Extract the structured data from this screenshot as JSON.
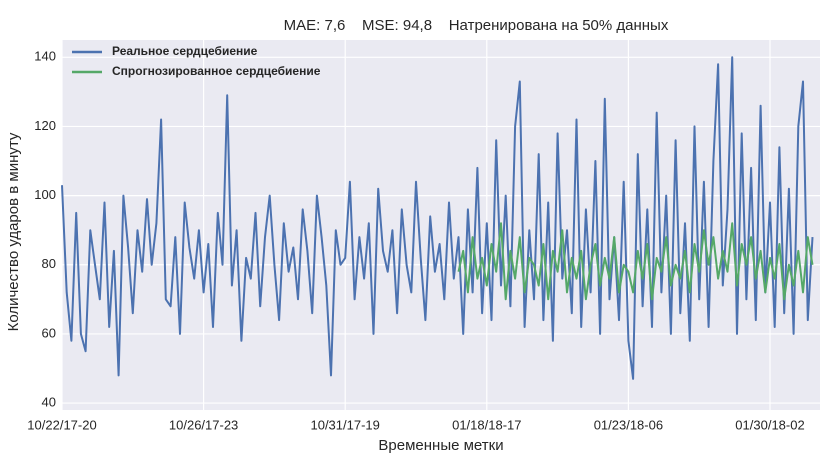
{
  "chart_data": {
    "type": "line",
    "title": "MAE: 7,6    MSE: 94,8    Натренирована на 50% данных",
    "x_label": "Временные метки",
    "y_label": "Количество ударов в минуту",
    "categories": [
      "10/22/17-20",
      null,
      null,
      null,
      null,
      null,
      null,
      null,
      null,
      null,
      null,
      null,
      null,
      null,
      null,
      null,
      null,
      null,
      null,
      null,
      null,
      null,
      null,
      null,
      null,
      null,
      null,
      null,
      null,
      null,
      "10/26/17-23",
      null,
      null,
      null,
      null,
      null,
      null,
      null,
      null,
      null,
      null,
      null,
      null,
      null,
      null,
      null,
      null,
      null,
      null,
      null,
      null,
      null,
      null,
      null,
      null,
      null,
      null,
      null,
      null,
      null,
      "10/31/17-19",
      null,
      null,
      null,
      null,
      null,
      null,
      null,
      null,
      null,
      null,
      null,
      null,
      null,
      null,
      null,
      null,
      null,
      null,
      null,
      null,
      null,
      null,
      null,
      null,
      null,
      null,
      null,
      null,
      null,
      "01/18/18-17",
      null,
      null,
      null,
      null,
      null,
      null,
      null,
      null,
      null,
      null,
      null,
      null,
      null,
      null,
      null,
      null,
      null,
      null,
      null,
      null,
      null,
      null,
      null,
      null,
      null,
      null,
      null,
      null,
      null,
      "01/23/18-06",
      null,
      null,
      null,
      null,
      null,
      null,
      null,
      null,
      null,
      null,
      null,
      null,
      null,
      null,
      null,
      null,
      null,
      null,
      null,
      null,
      null,
      null,
      null,
      null,
      null,
      null,
      null,
      null,
      null,
      "01/30/18-02",
      null,
      null,
      null,
      null,
      null,
      null,
      null,
      null,
      null
    ],
    "series": [
      {
        "name": "Реальное сердцебиение",
        "color": "#4c72b0",
        "values": [
          103,
          72,
          58,
          95,
          60,
          55,
          90,
          80,
          70,
          98,
          62,
          84,
          48,
          100,
          85,
          66,
          90,
          78,
          99,
          80,
          92,
          122,
          70,
          68,
          88,
          60,
          98,
          85,
          76,
          90,
          72,
          86,
          62,
          95,
          80,
          129,
          74,
          90,
          58,
          82,
          76,
          95,
          68,
          88,
          100,
          80,
          64,
          92,
          78,
          85,
          70,
          96,
          84,
          66,
          100,
          88,
          74,
          48,
          90,
          80,
          82,
          104,
          70,
          88,
          76,
          92,
          60,
          102,
          84,
          78,
          90,
          66,
          96,
          80,
          72,
          104,
          82,
          64,
          94,
          78,
          86,
          70,
          98,
          76,
          88,
          60,
          96,
          72,
          108,
          66,
          92,
          64,
          116,
          74,
          100,
          68,
          120,
          133,
          62,
          90,
          70,
          112,
          64,
          98,
          58,
          118,
          76,
          90,
          66,
          122,
          62,
          96,
          72,
          110,
          60,
          128,
          70,
          88,
          64,
          104,
          58,
          47,
          112,
          68,
          96,
          62,
          124,
          72,
          100,
          60,
          116,
          66,
          92,
          58,
          120,
          70,
          104,
          62,
          110,
          138,
          74,
          96,
          140,
          60,
          118,
          70,
          108,
          64,
          126,
          72,
          98,
          62,
          114,
          66,
          102,
          60,
          120,
          133,
          64,
          88
        ]
      },
      {
        "name": "Спрогнозированное сердцебиение",
        "color": "#55a868",
        "values": [
          null,
          null,
          null,
          null,
          null,
          null,
          null,
          null,
          null,
          null,
          null,
          null,
          null,
          null,
          null,
          null,
          null,
          null,
          null,
          null,
          null,
          null,
          null,
          null,
          null,
          null,
          null,
          null,
          null,
          null,
          null,
          null,
          null,
          null,
          null,
          null,
          null,
          null,
          null,
          null,
          null,
          null,
          null,
          null,
          null,
          null,
          null,
          null,
          null,
          null,
          null,
          null,
          null,
          null,
          null,
          null,
          null,
          null,
          null,
          null,
          null,
          null,
          null,
          null,
          null,
          null,
          null,
          null,
          null,
          null,
          null,
          null,
          null,
          null,
          null,
          null,
          null,
          null,
          null,
          null,
          null,
          null,
          null,
          null,
          78,
          84,
          72,
          88,
          76,
          82,
          74,
          86,
          78,
          92,
          70,
          84,
          76,
          88,
          72,
          82,
          80,
          74,
          86,
          70,
          84,
          78,
          90,
          72,
          82,
          76,
          84,
          70,
          80,
          86,
          74,
          82,
          76,
          88,
          72,
          80,
          78,
          72,
          84,
          76,
          86,
          70,
          82,
          78,
          88,
          74,
          80,
          76,
          84,
          72,
          86,
          78,
          90,
          80,
          88,
          76,
          84,
          78,
          92,
          74,
          86,
          80,
          88,
          76,
          84,
          72,
          82,
          76,
          86,
          70,
          80,
          74,
          84,
          72,
          88,
          80
        ]
      }
    ],
    "ylim": [
      38,
      145
    ],
    "yticks": [
      40,
      60,
      80,
      100,
      120,
      140
    ],
    "grid": true,
    "legend": "upper-left"
  }
}
